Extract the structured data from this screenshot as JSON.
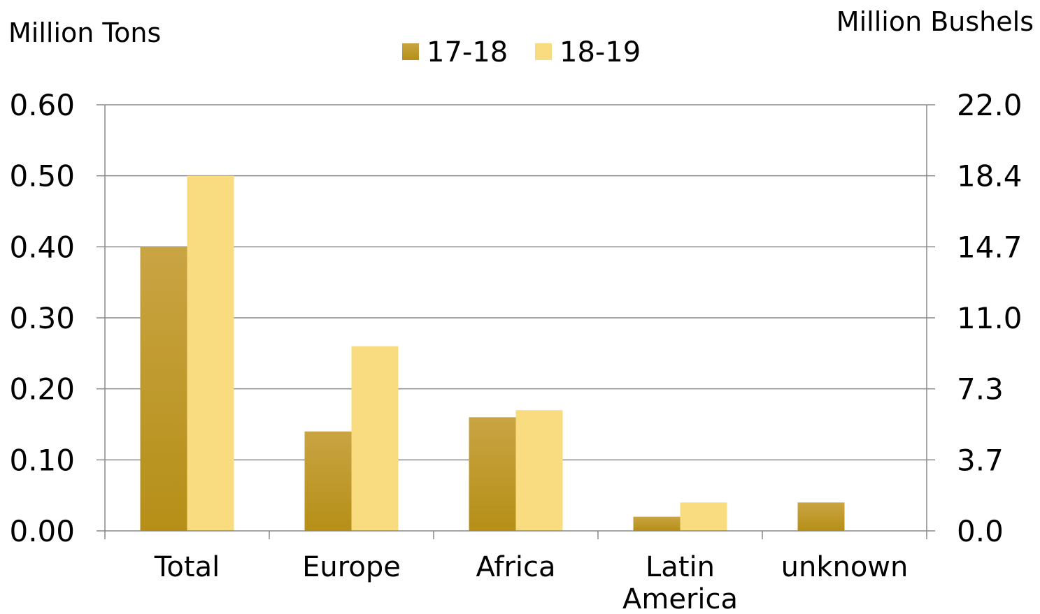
{
  "chart_data": {
    "type": "bar",
    "categories": [
      "Total",
      "Europe",
      "Africa",
      "Latin\nAmerica",
      "unknown"
    ],
    "series": [
      {
        "name": "17-18",
        "values": [
          0.4,
          0.14,
          0.16,
          0.02,
          0.04
        ]
      },
      {
        "name": "18-19",
        "values": [
          0.5,
          0.26,
          0.17,
          0.04,
          null
        ]
      }
    ],
    "y_left": {
      "label": "Million Tons",
      "range": [
        0,
        0.6
      ],
      "ticks": [
        "0.00",
        "0.10",
        "0.20",
        "0.30",
        "0.40",
        "0.50",
        "0.60"
      ]
    },
    "y_right": {
      "label": "Million Bushels",
      "ticks": [
        "0.0",
        "3.7",
        "7.3",
        "11.0",
        "14.7",
        "18.4",
        "22.0"
      ]
    },
    "grid": true,
    "legend_position": "top-center",
    "colors": {
      "series_1_top": "#c9a443",
      "series_1_bottom": "#b58f17",
      "series_2": "#fadc80",
      "grid": "#888888"
    }
  }
}
